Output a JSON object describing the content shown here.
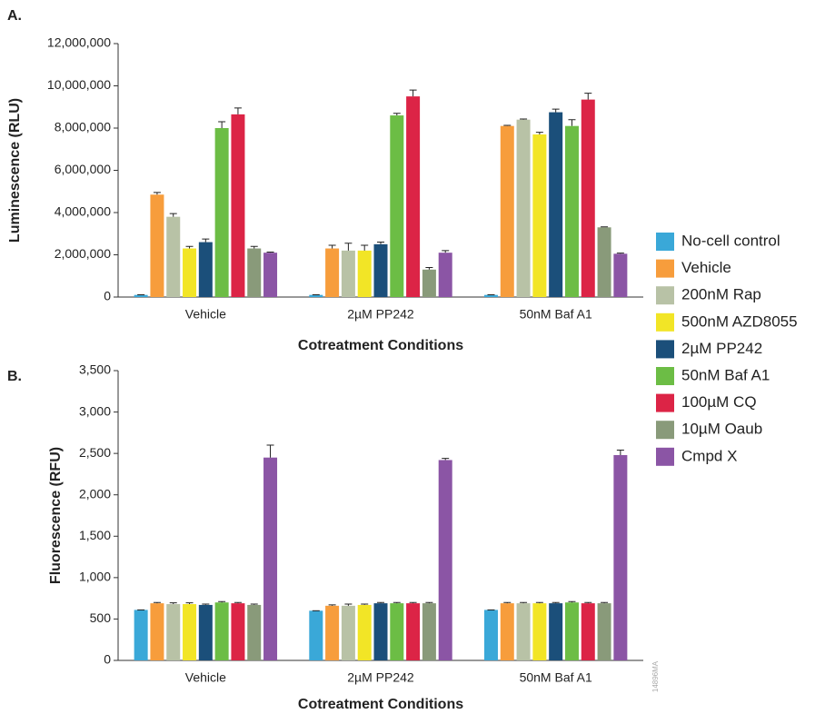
{
  "panel_labels": [
    "A.",
    "B."
  ],
  "watermark": "14896MA",
  "chart_data": [
    {
      "type": "bar",
      "ylabel": "Luminescence (RLU)",
      "xlabel": "Cotreatment Conditions",
      "categories": [
        "Vehicle",
        "2µM PP242",
        "50nM Baf A1"
      ],
      "ylim": [
        0,
        12000000
      ],
      "yticks": [
        0,
        {
          "value": 2000000,
          "label": "2,000,000"
        },
        {
          "value": 4000000,
          "label": "4,000,000"
        },
        {
          "value": 6000000,
          "label": "6,000,000"
        },
        {
          "value": 8000000,
          "label": "8,000,000"
        },
        {
          "value": 10000000,
          "label": "10,000,000"
        },
        {
          "value": 12000000,
          "label": "12,000,000"
        }
      ],
      "series": [
        {
          "name": "No-cell control",
          "color": "#3aa8d8",
          "values": [
            100000,
            100000,
            100000
          ],
          "errors": [
            10000,
            10000,
            10000
          ]
        },
        {
          "name": "Vehicle",
          "color": "#f79d3c",
          "values": [
            4850000,
            2300000,
            8100000
          ],
          "errors": [
            100000,
            150000,
            30000
          ]
        },
        {
          "name": "200nM Rap",
          "color": "#b8c2a6",
          "values": [
            3800000,
            2200000,
            8400000
          ],
          "errors": [
            150000,
            350000,
            30000
          ]
        },
        {
          "name": "500nM AZD8055",
          "color": "#f2e526",
          "values": [
            2300000,
            2200000,
            7700000
          ],
          "errors": [
            100000,
            250000,
            100000
          ]
        },
        {
          "name": "2µM PP242",
          "color": "#1b4f7a",
          "values": [
            2600000,
            2500000,
            8750000
          ],
          "errors": [
            150000,
            100000,
            150000
          ]
        },
        {
          "name": "50nM Baf A1",
          "color": "#6cbd45",
          "values": [
            8000000,
            8600000,
            8100000
          ],
          "errors": [
            300000,
            100000,
            300000
          ]
        },
        {
          "name": "100µM CQ",
          "color": "#dc2446",
          "values": [
            8650000,
            9500000,
            9350000
          ],
          "errors": [
            300000,
            300000,
            300000
          ]
        },
        {
          "name": "10µM Oaub",
          "color": "#899a7a",
          "values": [
            2300000,
            1300000,
            3300000
          ],
          "errors": [
            100000,
            100000,
            20000
          ]
        },
        {
          "name": "Cmpd X",
          "color": "#8b55a5",
          "values": [
            2100000,
            2100000,
            2050000
          ],
          "errors": [
            30000,
            100000,
            30000
          ]
        }
      ]
    },
    {
      "type": "bar",
      "ylabel": "Fluorescence (RFU)",
      "xlabel": "Cotreatment Conditions",
      "categories": [
        "Vehicle",
        "2µM PP242",
        "50nM Baf A1"
      ],
      "ylim": [
        0,
        3500
      ],
      "yticks": [
        0,
        500,
        {
          "value": 1000,
          "label": "1,000"
        },
        {
          "value": 1500,
          "label": "1,500"
        },
        {
          "value": 2000,
          "label": "2,000"
        },
        {
          "value": 2500,
          "label": "2,500"
        },
        {
          "value": 3000,
          "label": "3,000"
        },
        {
          "value": 3500,
          "label": "3,500"
        }
      ],
      "series": [
        {
          "color": "#3aa8d8",
          "values": [
            610,
            600,
            610
          ],
          "errors": [
            0,
            0,
            0
          ]
        },
        {
          "color": "#f79d3c",
          "values": [
            690,
            660,
            690
          ],
          "errors": [
            10,
            10,
            10
          ]
        },
        {
          "color": "#b8c2a6",
          "values": [
            680,
            660,
            690
          ],
          "errors": [
            15,
            20,
            10
          ]
        },
        {
          "color": "#f2e526",
          "values": [
            680,
            670,
            690
          ],
          "errors": [
            15,
            10,
            10
          ]
        },
        {
          "color": "#1b4f7a",
          "values": [
            670,
            690,
            690
          ],
          "errors": [
            10,
            10,
            10
          ]
        },
        {
          "color": "#6cbd45",
          "values": [
            700,
            690,
            700
          ],
          "errors": [
            10,
            10,
            10
          ]
        },
        {
          "color": "#dc2446",
          "values": [
            690,
            690,
            690
          ],
          "errors": [
            10,
            10,
            10
          ]
        },
        {
          "color": "#899a7a",
          "values": [
            670,
            690,
            690
          ],
          "errors": [
            10,
            10,
            10
          ]
        },
        {
          "color": "#8b55a5",
          "values": [
            2450,
            2420,
            2480
          ],
          "errors": [
            150,
            20,
            60
          ]
        }
      ]
    }
  ]
}
